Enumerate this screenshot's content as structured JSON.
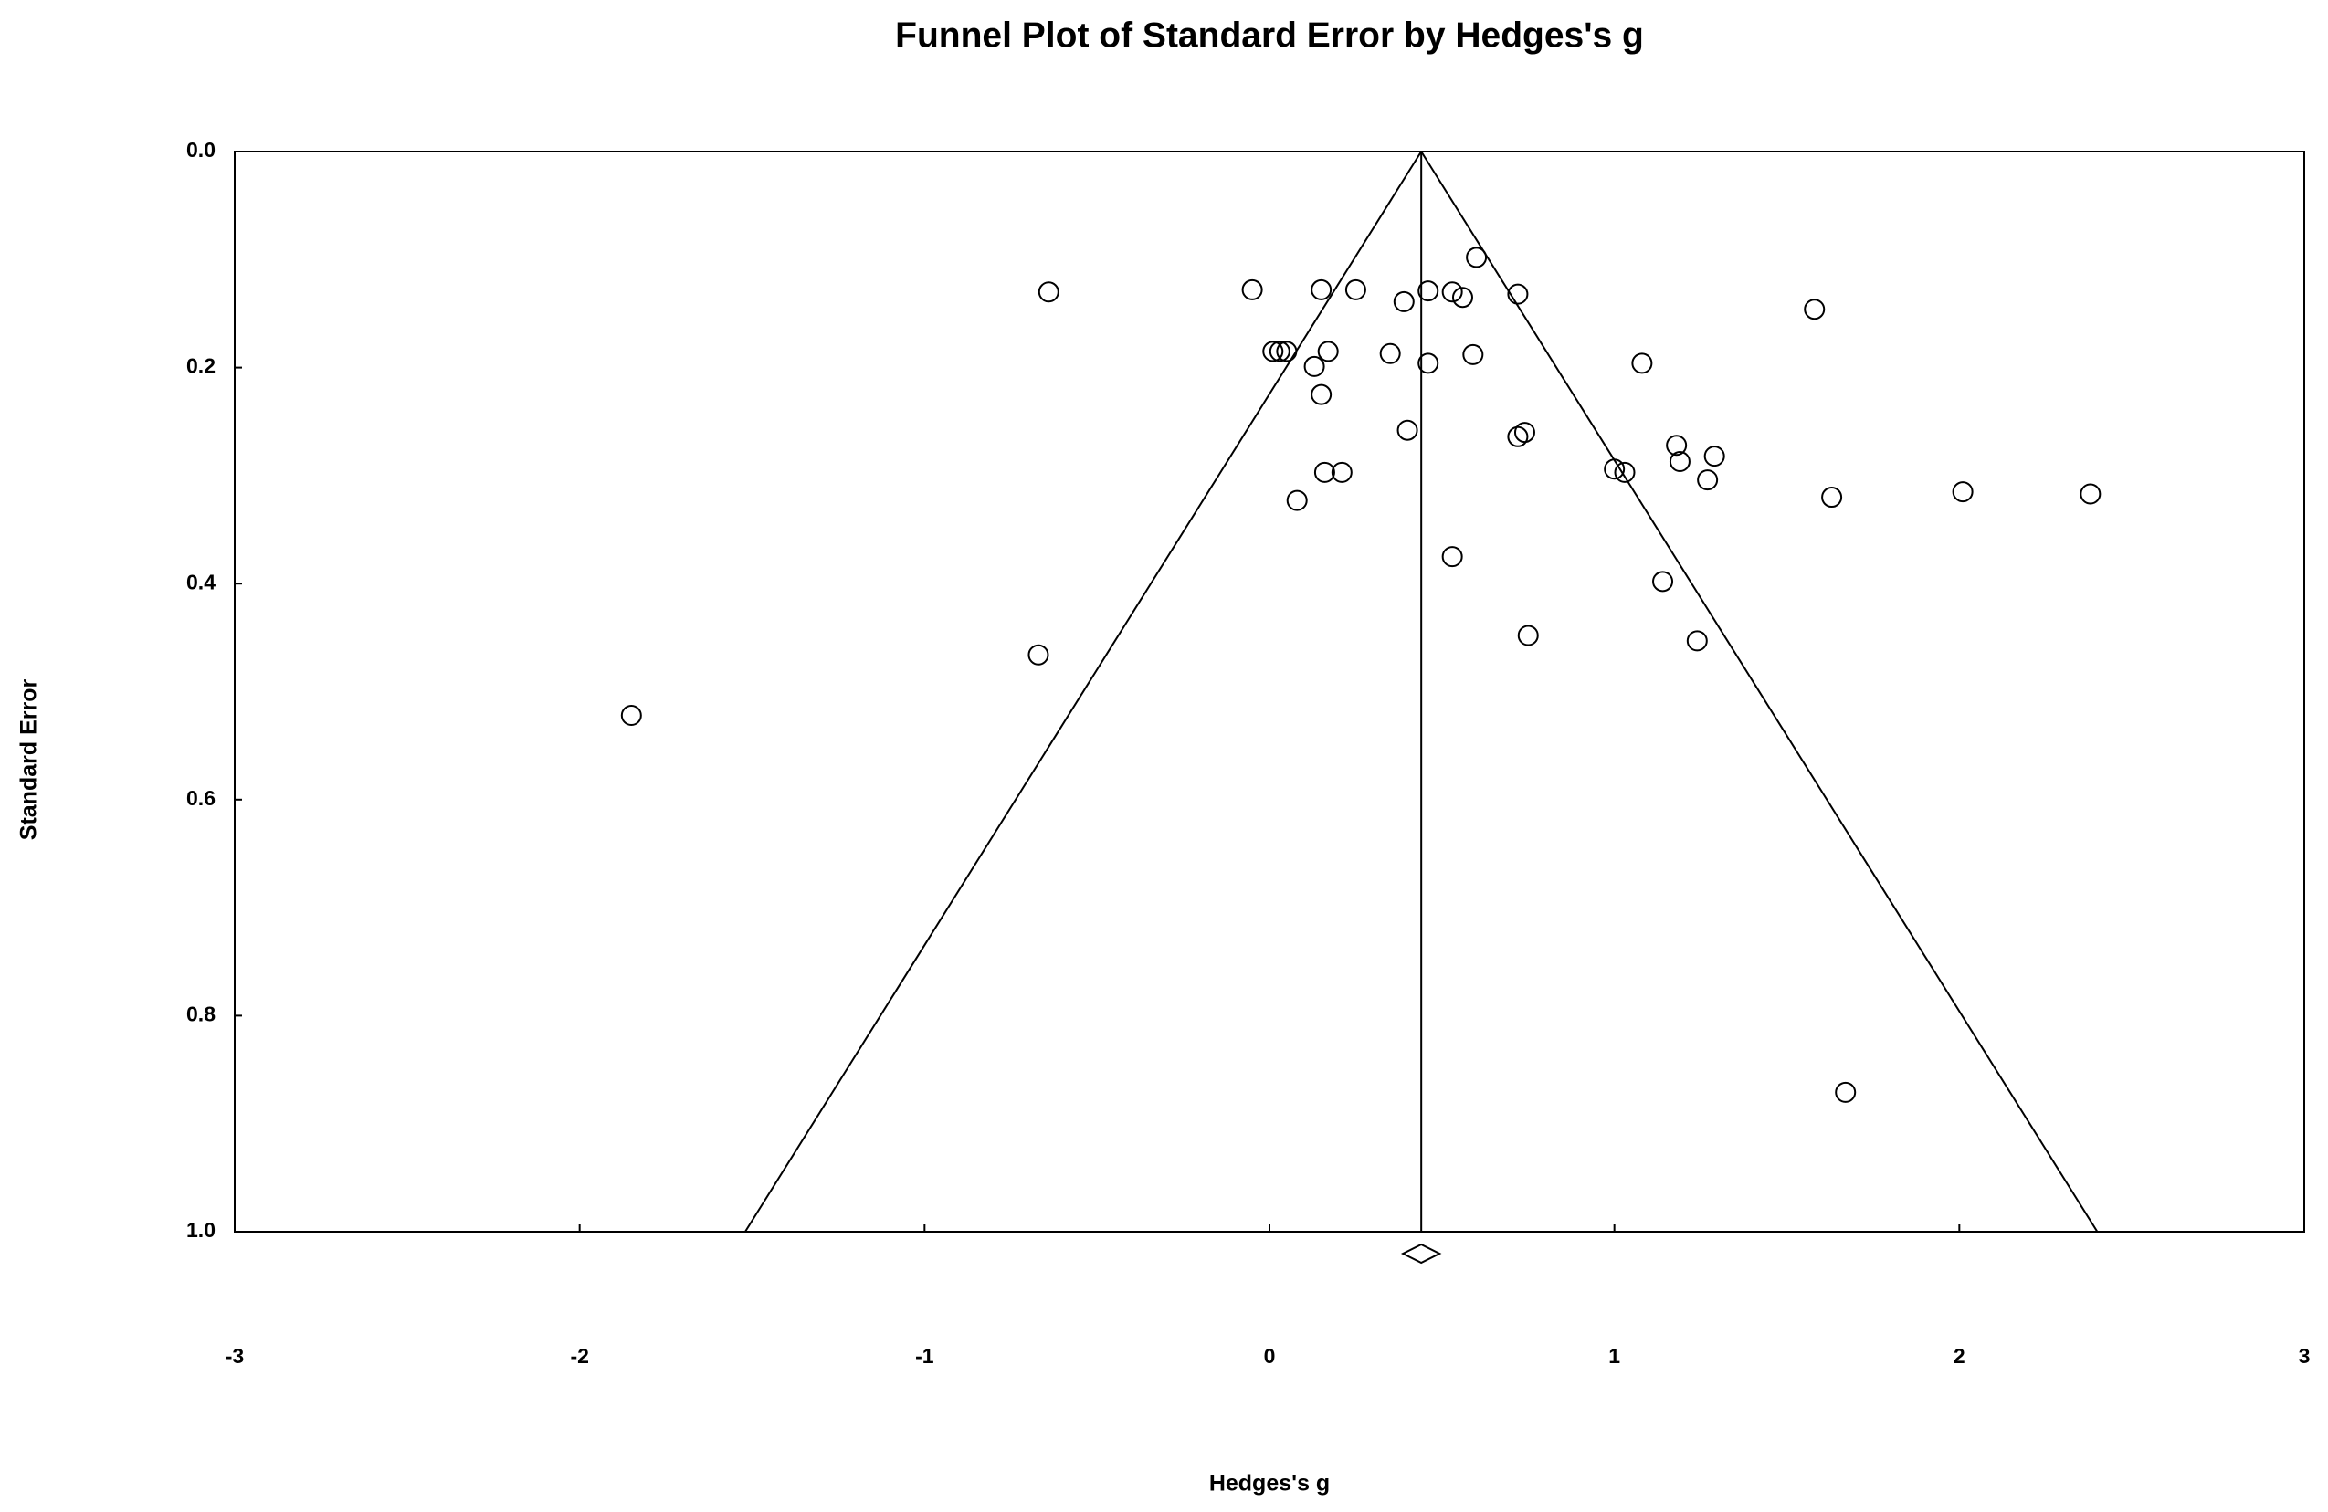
{
  "chart_data": {
    "type": "scatter",
    "title": "Funnel Plot of Standard Error by Hedges's g",
    "x_label": "Hedges's g",
    "y_label": "Standard Error",
    "color": "#000000",
    "x": [
      -0.64,
      -0.05,
      0.15,
      0.25,
      0.39,
      0.46,
      0.53,
      0.56,
      0.6,
      0.72,
      1.58,
      0.01,
      0.03,
      0.05,
      0.13,
      0.17,
      0.35,
      0.46,
      0.59,
      1.08,
      0.15,
      0.4,
      0.72,
      0.74,
      1.18,
      1.29,
      1.19,
      1.0,
      1.03,
      1.27,
      0.16,
      0.21,
      0.08,
      1.63,
      2.01,
      2.38,
      0.53,
      1.14,
      0.75,
      1.24,
      -0.67,
      -1.85,
      1.67
    ],
    "values": [
      0.13,
      0.128,
      0.128,
      0.128,
      0.139,
      0.129,
      0.13,
      0.135,
      0.098,
      0.132,
      0.146,
      0.185,
      0.185,
      0.185,
      0.199,
      0.185,
      0.187,
      0.196,
      0.188,
      0.196,
      0.225,
      0.258,
      0.264,
      0.26,
      0.272,
      0.282,
      0.287,
      0.294,
      0.297,
      0.304,
      0.297,
      0.297,
      0.323,
      0.32,
      0.315,
      0.317,
      0.375,
      0.398,
      0.448,
      0.453,
      0.466,
      0.522,
      0.871
    ],
    "summary_effect": 0.44,
    "funnel_limits": [
      -1.52,
      2.4
    ],
    "xlim": [
      -3,
      3
    ],
    "xticks": [
      -3,
      -2,
      -1,
      0,
      1,
      2,
      3
    ],
    "ylim": [
      0,
      1
    ],
    "yticks": [
      {
        "value": 0,
        "label": "0.0"
      },
      {
        "value": 0.2,
        "label": "0.2"
      },
      {
        "value": 0.4,
        "label": "0.4"
      },
      {
        "value": 0.6,
        "label": "0.6"
      },
      {
        "value": 0.8,
        "label": "0.8"
      },
      {
        "value": 1,
        "label": "1.0"
      }
    ],
    "y_inverted": true
  }
}
